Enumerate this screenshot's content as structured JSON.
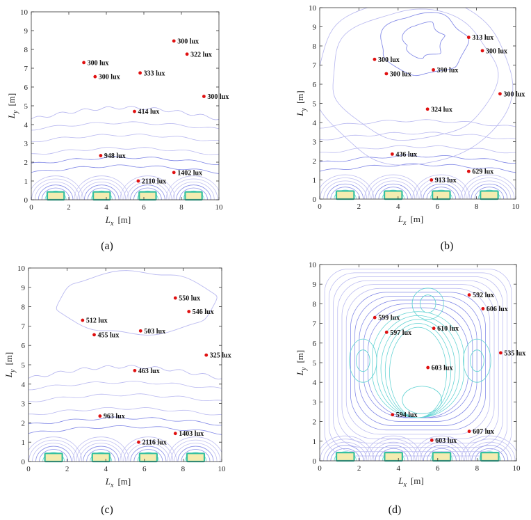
{
  "chart_data": [
    {
      "type": "scatter",
      "panel_label": "(a)",
      "xlabel": "L_x  [m]",
      "ylabel": "L_y  [m]",
      "xlim": [
        0,
        10
      ],
      "ylim": [
        0,
        10
      ],
      "xticks": [
        0,
        2,
        4,
        6,
        8,
        10
      ],
      "yticks": [
        0,
        1,
        2,
        3,
        4,
        5,
        6,
        7,
        8,
        9,
        10
      ],
      "contour_style": "sparse",
      "points": [
        {
          "x": 7.6,
          "y": 8.45,
          "label": "300 lux"
        },
        {
          "x": 8.3,
          "y": 7.75,
          "label": "322 lux"
        },
        {
          "x": 2.8,
          "y": 7.3,
          "label": "300 lux"
        },
        {
          "x": 5.8,
          "y": 6.75,
          "label": "333 lux"
        },
        {
          "x": 3.4,
          "y": 6.55,
          "label": "300 lux"
        },
        {
          "x": 9.2,
          "y": 5.5,
          "label": "300 lux"
        },
        {
          "x": 5.5,
          "y": 4.7,
          "label": "414 lux"
        },
        {
          "x": 3.7,
          "y": 2.35,
          "label": "948 lux"
        },
        {
          "x": 7.6,
          "y": 1.45,
          "label": "1402 lux"
        },
        {
          "x": 5.7,
          "y": 1.0,
          "label": "2110 lux"
        }
      ]
    },
    {
      "type": "scatter",
      "panel_label": "(b)",
      "xlabel": "L_x  [m]",
      "ylabel": "L_y  [m]",
      "xlim": [
        0,
        10
      ],
      "ylim": [
        0,
        10
      ],
      "xticks": [
        0,
        2,
        4,
        6,
        8,
        10
      ],
      "yticks": [
        0,
        1,
        2,
        3,
        4,
        5,
        6,
        7,
        8,
        9,
        10
      ],
      "contour_style": "sparse-full",
      "points": [
        {
          "x": 7.6,
          "y": 8.45,
          "label": "313 lux"
        },
        {
          "x": 8.3,
          "y": 7.75,
          "label": "300 lux"
        },
        {
          "x": 2.8,
          "y": 7.3,
          "label": "300 lux"
        },
        {
          "x": 5.8,
          "y": 6.75,
          "label": "390 lux"
        },
        {
          "x": 3.4,
          "y": 6.55,
          "label": "300 lux"
        },
        {
          "x": 9.2,
          "y": 5.5,
          "label": "300 lux"
        },
        {
          "x": 5.5,
          "y": 4.7,
          "label": "324 lux"
        },
        {
          "x": 3.7,
          "y": 2.35,
          "label": "436 lux"
        },
        {
          "x": 7.6,
          "y": 1.45,
          "label": "629 lux"
        },
        {
          "x": 5.7,
          "y": 1.0,
          "label": "913 lux"
        }
      ]
    },
    {
      "type": "scatter",
      "panel_label": "(c)",
      "xlabel": "L_x  [m]",
      "ylabel": "L_y  [m]",
      "xlim": [
        0,
        10
      ],
      "ylim": [
        0,
        10
      ],
      "xticks": [
        0,
        2,
        4,
        6,
        8,
        10
      ],
      "yticks": [
        0,
        1,
        2,
        3,
        4,
        5,
        6,
        7,
        8,
        9,
        10
      ],
      "contour_style": "sparse-top",
      "points": [
        {
          "x": 7.6,
          "y": 8.45,
          "label": "550 lux"
        },
        {
          "x": 8.3,
          "y": 7.75,
          "label": "546 lux"
        },
        {
          "x": 2.8,
          "y": 7.3,
          "label": "512 lux"
        },
        {
          "x": 5.8,
          "y": 6.75,
          "label": "503 lux"
        },
        {
          "x": 3.4,
          "y": 6.55,
          "label": "455 lux"
        },
        {
          "x": 9.2,
          "y": 5.5,
          "label": "325 lux"
        },
        {
          "x": 5.5,
          "y": 4.7,
          "label": "463 lux"
        },
        {
          "x": 3.7,
          "y": 2.35,
          "label": "963 lux"
        },
        {
          "x": 7.6,
          "y": 1.45,
          "label": "1403 lux"
        },
        {
          "x": 5.7,
          "y": 1.0,
          "label": "2116 lux"
        }
      ]
    },
    {
      "type": "scatter",
      "panel_label": "(d)",
      "xlabel": "L_x  [m]",
      "ylabel": "L_y  [m]",
      "xlim": [
        0,
        10
      ],
      "ylim": [
        0,
        10
      ],
      "xticks": [
        0,
        2,
        4,
        6,
        8,
        10
      ],
      "yticks": [
        0,
        1,
        2,
        3,
        4,
        5,
        6,
        7,
        8,
        9,
        10
      ],
      "contour_style": "dense",
      "points": [
        {
          "x": 7.6,
          "y": 8.45,
          "label": "592 lux"
        },
        {
          "x": 8.3,
          "y": 7.75,
          "label": "606 lux"
        },
        {
          "x": 2.8,
          "y": 7.3,
          "label": "599 lux"
        },
        {
          "x": 5.8,
          "y": 6.75,
          "label": "610 lux"
        },
        {
          "x": 3.4,
          "y": 6.55,
          "label": "597 lux"
        },
        {
          "x": 9.2,
          "y": 5.5,
          "label": "535 lux"
        },
        {
          "x": 5.5,
          "y": 4.75,
          "label": "603 lux"
        },
        {
          "x": 3.7,
          "y": 2.35,
          "label": "594 lux"
        },
        {
          "x": 7.6,
          "y": 1.5,
          "label": "607 lux"
        },
        {
          "x": 5.7,
          "y": 1.05,
          "label": "603 lux"
        }
      ]
    }
  ],
  "colors": {
    "point": "#e01010",
    "contour_light": "#b9b9f0",
    "contour_mid": "#7f86e6",
    "contour_cyan": "#5fd2d2",
    "window_fill": "#f4ecb0",
    "window_frame": "#35c0a0",
    "axis": "#333333"
  }
}
